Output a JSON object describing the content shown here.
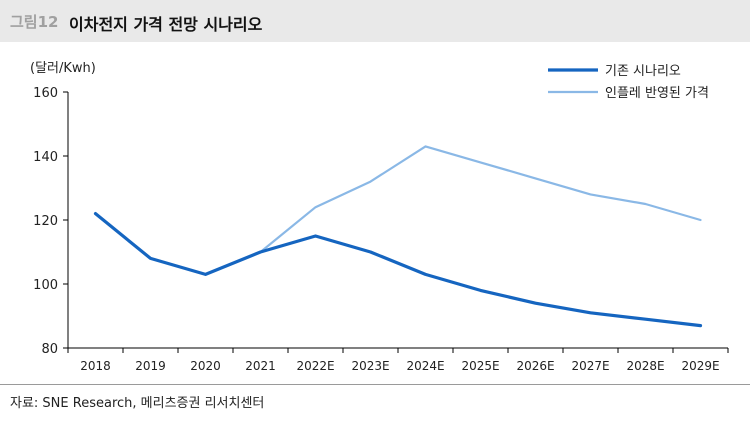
{
  "figure": {
    "label": "그림12",
    "title": "이차전지 가격 전망 시나리오",
    "source": "자료: SNE Research, 메리츠증권 리서치센터"
  },
  "chart_data": {
    "type": "line",
    "title": "",
    "xlabel": "",
    "ylabel": "(달러/Kwh)",
    "categories": [
      "2018",
      "2019",
      "2020",
      "2021",
      "2022E",
      "2023E",
      "2024E",
      "2025E",
      "2026E",
      "2027E",
      "2028E",
      "2029E"
    ],
    "yticks": [
      80,
      100,
      120,
      140,
      160
    ],
    "ylim": [
      80,
      160
    ],
    "grid": false,
    "legend_position": "top-right",
    "series": [
      {
        "name": "기존 시나리오",
        "color": "#1565c0",
        "values": [
          122,
          108,
          103,
          110,
          115,
          110,
          103,
          98,
          94,
          91,
          89,
          87
        ]
      },
      {
        "name": "인플레 반영된 가격",
        "color": "#8ab8e6",
        "values": [
          122,
          108,
          103,
          110,
          124,
          132,
          143,
          138,
          133,
          128,
          125,
          120
        ]
      }
    ]
  }
}
